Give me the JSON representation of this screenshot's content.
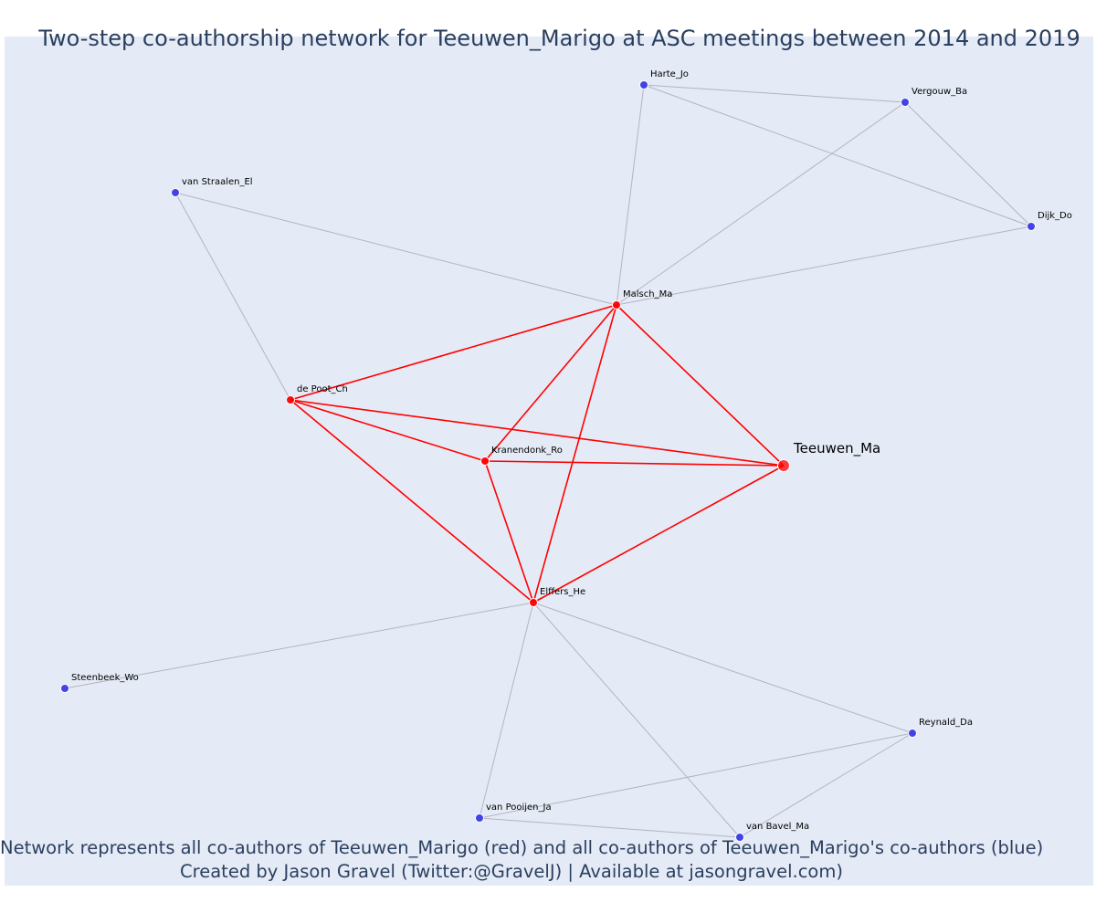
{
  "title": "Two-step co-authorship network for Teeuwen_Marigo at ASC meetings between 2014 and 2019",
  "caption_line1": "Network represents all co-authors of Teeuwen_Marigo (red) and all co-authors of Teeuwen_Marigo's co-authors (blue)",
  "caption_line2": "Created by Jason Gravel (Twitter:@GravelJ) | Available at jasongravel.com)",
  "colors": {
    "first_degree": "#ff0000",
    "second_degree": "#3a3ae8",
    "edge_first": "#ff0000",
    "edge_second": "#b3b3c2",
    "background": "#e5ebf6",
    "title_text": "#2a3f5f"
  },
  "network": {
    "nodes": [
      {
        "id": "Teeuwen_Ma",
        "label": "Teeuwen_Ma",
        "group": "focal"
      },
      {
        "id": "Malsch_Ma",
        "label": "Malsch_Ma",
        "group": "coauthor"
      },
      {
        "id": "de_Poot_Ch",
        "label": "de Poot_Ch",
        "group": "coauthor"
      },
      {
        "id": "Kranendonk_Ro",
        "label": "Kranendonk_Ro",
        "group": "coauthor"
      },
      {
        "id": "Elffers_He",
        "label": "Elffers_He",
        "group": "coauthor"
      },
      {
        "id": "Harte_Jo",
        "label": "Harte_Jo",
        "group": "second"
      },
      {
        "id": "Vergouw_Ba",
        "label": "Vergouw_Ba",
        "group": "second"
      },
      {
        "id": "Dijk_Do",
        "label": "Dijk_Do",
        "group": "second"
      },
      {
        "id": "van_Straalen_El",
        "label": "van Straalen_El",
        "group": "second"
      },
      {
        "id": "Steenbeek_Wo",
        "label": "Steenbeek_Wo",
        "group": "second"
      },
      {
        "id": "Reynald_Da",
        "label": "Reynald_Da",
        "group": "second"
      },
      {
        "id": "van_Pooijen_Ja",
        "label": "van Pooijen_Ja",
        "group": "second"
      },
      {
        "id": "van_Bavel_Ma",
        "label": "van Bavel_Ma",
        "group": "second"
      }
    ],
    "edges": [
      {
        "source": "Teeuwen_Ma",
        "target": "Malsch_Ma",
        "type": "first"
      },
      {
        "source": "Teeuwen_Ma",
        "target": "de_Poot_Ch",
        "type": "first"
      },
      {
        "source": "Teeuwen_Ma",
        "target": "Kranendonk_Ro",
        "type": "first"
      },
      {
        "source": "Teeuwen_Ma",
        "target": "Elffers_He",
        "type": "first"
      },
      {
        "source": "Malsch_Ma",
        "target": "de_Poot_Ch",
        "type": "first"
      },
      {
        "source": "Malsch_Ma",
        "target": "Kranendonk_Ro",
        "type": "first"
      },
      {
        "source": "Malsch_Ma",
        "target": "Elffers_He",
        "type": "first"
      },
      {
        "source": "de_Poot_Ch",
        "target": "Kranendonk_Ro",
        "type": "first"
      },
      {
        "source": "de_Poot_Ch",
        "target": "Elffers_He",
        "type": "first"
      },
      {
        "source": "Kranendonk_Ro",
        "target": "Elffers_He",
        "type": "first"
      },
      {
        "source": "Harte_Jo",
        "target": "Vergouw_Ba",
        "type": "second"
      },
      {
        "source": "Harte_Jo",
        "target": "Dijk_Do",
        "type": "second"
      },
      {
        "source": "Harte_Jo",
        "target": "Malsch_Ma",
        "type": "second"
      },
      {
        "source": "Vergouw_Ba",
        "target": "Dijk_Do",
        "type": "second"
      },
      {
        "source": "Vergouw_Ba",
        "target": "Malsch_Ma",
        "type": "second"
      },
      {
        "source": "Dijk_Do",
        "target": "Malsch_Ma",
        "type": "second"
      },
      {
        "source": "van_Straalen_El",
        "target": "Malsch_Ma",
        "type": "second"
      },
      {
        "source": "van_Straalen_El",
        "target": "de_Poot_Ch",
        "type": "second"
      },
      {
        "source": "Steenbeek_Wo",
        "target": "Elffers_He",
        "type": "second"
      },
      {
        "source": "Elffers_He",
        "target": "Reynald_Da",
        "type": "second"
      },
      {
        "source": "Elffers_He",
        "target": "van_Pooijen_Ja",
        "type": "second"
      },
      {
        "source": "Elffers_He",
        "target": "van_Bavel_Ma",
        "type": "second"
      },
      {
        "source": "Reynald_Da",
        "target": "van_Pooijen_Ja",
        "type": "second"
      },
      {
        "source": "Reynald_Da",
        "target": "van_Bavel_Ma",
        "type": "second"
      },
      {
        "source": "van_Pooijen_Ja",
        "target": "van_Bavel_Ma",
        "type": "second"
      }
    ]
  }
}
